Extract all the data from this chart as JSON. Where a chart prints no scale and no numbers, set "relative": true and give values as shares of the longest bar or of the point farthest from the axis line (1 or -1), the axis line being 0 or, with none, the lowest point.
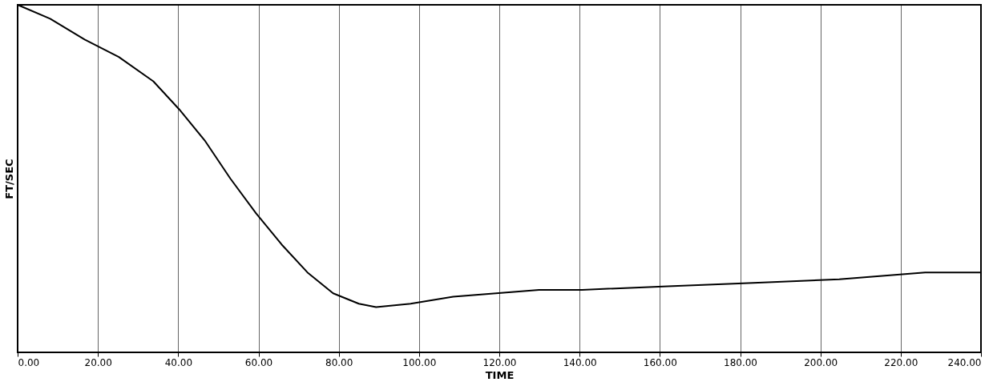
{
  "chart_data": {
    "type": "line",
    "relative": true,
    "xlabel": "TIME",
    "ylabel": "FT/SEC",
    "xlim": [
      0,
      240
    ],
    "xticks": [
      {
        "value": 0,
        "label": "0.00"
      },
      {
        "value": 20,
        "label": "20.00"
      },
      {
        "value": 40,
        "label": "40.00"
      },
      {
        "value": 60,
        "label": "60.00"
      },
      {
        "value": 80,
        "label": "80.00"
      },
      {
        "value": 100,
        "label": "100.00"
      },
      {
        "value": 120,
        "label": "120.00"
      },
      {
        "value": 140,
        "label": "140.00"
      },
      {
        "value": 160,
        "label": "160.00"
      },
      {
        "value": 180,
        "label": "180.00"
      },
      {
        "value": 200,
        "label": "200.00"
      },
      {
        "value": 220,
        "label": "220.00"
      },
      {
        "value": 240,
        "label": "240.00"
      }
    ],
    "grid": "x",
    "marker": "none",
    "line_style": "solid",
    "series": [
      {
        "color": "#000000",
        "x": [
          0,
          8.1,
          16.7,
          25.2,
          33.8,
          40.2,
          46.6,
          53.0,
          59.4,
          65.8,
          72.2,
          78.6,
          85.0,
          89.3,
          97.9,
          108.5,
          119.2,
          129.9,
          140.6,
          162.0,
          183.3,
          204.7,
          226.1,
          240
        ],
        "values": [
          1.0,
          0.96,
          0.9,
          0.85,
          0.78,
          0.7,
          0.61,
          0.5,
          0.4,
          0.31,
          0.23,
          0.17,
          0.14,
          0.13,
          0.14,
          0.16,
          0.17,
          0.18,
          0.18,
          0.19,
          0.2,
          0.21,
          0.23,
          0.23
        ]
      }
    ]
  }
}
